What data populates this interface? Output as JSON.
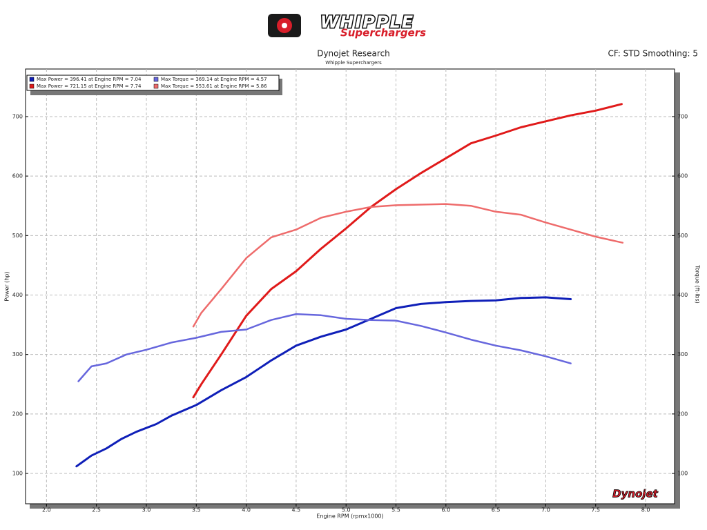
{
  "chart_data": {
    "type": "line",
    "logo_text": "WHIPPLE",
    "logo_subtext": "Superchargers",
    "title": "Dynojet Research",
    "subtitle": "Whipple Superchargers",
    "corner_note": "CF: STD Smoothing: 5",
    "x_label": "Engine RPM (rpmx1000)",
    "y_label": "Power (hp)",
    "y2_label": "Torque (ft-lbs)",
    "watermark": "Dynojet",
    "xlim": [
      1.79,
      8.29
    ],
    "ylim": [
      49,
      780
    ],
    "y2lim": [
      49,
      780
    ],
    "xticks": [
      {
        "value": 2,
        "label": "2.0"
      },
      2.5,
      {
        "value": 3,
        "label": "3.0"
      },
      3.5,
      {
        "value": 4,
        "label": "4.0"
      },
      4.5,
      {
        "value": 5,
        "label": "5.0"
      },
      5.5,
      {
        "value": 6,
        "label": "6.0"
      },
      6.5,
      {
        "value": 7,
        "label": "7.0"
      },
      7.5,
      {
        "value": 8,
        "label": "8.0"
      }
    ],
    "yticks": [
      100,
      200,
      300,
      400,
      500,
      600,
      700
    ],
    "y2ticks": [
      100,
      200,
      300,
      400,
      500,
      600,
      700
    ],
    "grid": true,
    "series": [
      {
        "name": "Max Power = 396.41 at Engine RPM = 7.04",
        "color": "#0f1fb8",
        "x": [
          2.3,
          2.45,
          2.6,
          2.75,
          2.9,
          3.1,
          3.25,
          3.5,
          3.75,
          4.0,
          4.25,
          4.5,
          4.75,
          5.0,
          5.25,
          5.5,
          5.75,
          6.0,
          6.25,
          6.5,
          6.75,
          7.0,
          7.25
        ],
        "values": [
          112,
          130,
          142,
          158,
          170,
          183,
          197,
          215,
          240,
          262,
          290,
          315,
          330,
          342,
          360,
          378,
          385,
          388,
          390,
          391,
          395,
          396,
          393
        ]
      },
      {
        "name": "Max Power = 721.15 at Engine RPM = 7.74",
        "color": "#e01a1a",
        "x": [
          3.47,
          3.55,
          3.75,
          4.0,
          4.25,
          4.5,
          4.75,
          5.0,
          5.25,
          5.5,
          5.75,
          6.0,
          6.25,
          6.5,
          6.75,
          7.0,
          7.25,
          7.5,
          7.76
        ],
        "values": [
          228,
          250,
          300,
          365,
          410,
          440,
          478,
          512,
          548,
          578,
          605,
          630,
          655,
          668,
          682,
          692,
          702,
          710,
          721
        ]
      },
      {
        "name": "Max Torque = 369.14 at Engine RPM = 4.57",
        "color": "#6666dd",
        "axis": "y2",
        "x": [
          2.32,
          2.45,
          2.6,
          2.8,
          3.0,
          3.25,
          3.5,
          3.75,
          4.0,
          4.25,
          4.5,
          4.75,
          5.0,
          5.25,
          5.5,
          5.75,
          6.0,
          6.25,
          6.5,
          6.75,
          7.0,
          7.25
        ],
        "values": [
          255,
          280,
          285,
          300,
          308,
          320,
          328,
          338,
          342,
          358,
          368,
          366,
          360,
          358,
          357,
          348,
          337,
          325,
          315,
          307,
          297,
          285
        ]
      },
      {
        "name": "Max Torque = 553.61 at Engine RPM = 5.86",
        "color": "#ee6b6b",
        "axis": "y2",
        "x": [
          3.47,
          3.55,
          3.75,
          4.0,
          4.25,
          4.5,
          4.75,
          5.0,
          5.25,
          5.5,
          5.75,
          6.0,
          6.25,
          6.5,
          6.75,
          7.0,
          7.25,
          7.5,
          7.77
        ],
        "values": [
          347,
          370,
          410,
          462,
          497,
          510,
          530,
          540,
          548,
          551,
          552,
          553,
          550,
          540,
          535,
          522,
          510,
          498,
          488
        ]
      }
    ]
  }
}
